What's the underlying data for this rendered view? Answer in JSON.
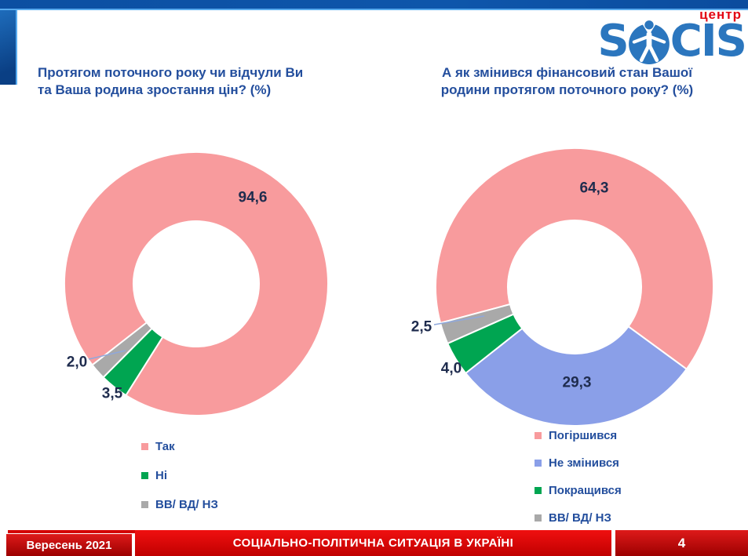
{
  "header": {
    "logo": {
      "prefix": "S",
      "suffix": "CIS",
      "tagline": "центр",
      "brand_color": "#2B76BE",
      "tagline_color": "#E30613"
    }
  },
  "chart_data": [
    {
      "type": "pie",
      "subtype": "donut",
      "title": "Протягом поточного року чи відчули Ви\nта Ваша родина зростання цін? (%)",
      "labels": [
        "Так",
        "Ні",
        "ВВ/ ВД/ НЗ"
      ],
      "values": [
        94.6,
        3.5,
        2.0
      ],
      "colors": [
        "#F89B9D",
        "#00A551",
        "#A9A9A9"
      ],
      "value_labels": [
        "94,6",
        "3,5",
        "2,0"
      ],
      "start_angle_deg": 232,
      "direction": "clockwise",
      "legend_position": "below-left",
      "leader_line_color": "#8FA8DC"
    },
    {
      "type": "pie",
      "subtype": "donut",
      "title": "А як змінився фінансовий стан Вашої\nродини протягом поточного року? (%)",
      "labels": [
        "Погіршився",
        "Не змінився",
        "Покращився",
        "ВВ/ ВД/ НЗ"
      ],
      "values": [
        64.3,
        29.3,
        4.0,
        2.5
      ],
      "colors": [
        "#F89B9D",
        "#8A9FE8",
        "#00A551",
        "#A9A9A9"
      ],
      "value_labels": [
        "64,3",
        "29,3",
        "4,0",
        "2,5"
      ],
      "start_angle_deg": 255,
      "direction": "clockwise",
      "legend_position": "below-left",
      "leader_line_color": "#8FA8DC"
    }
  ],
  "footer": {
    "date": "Вересень 2021",
    "title": "СОЦІАЛЬНО-ПОЛІТИЧНА СИТУАЦІЯ В УКРАЇНІ",
    "page": "4"
  }
}
